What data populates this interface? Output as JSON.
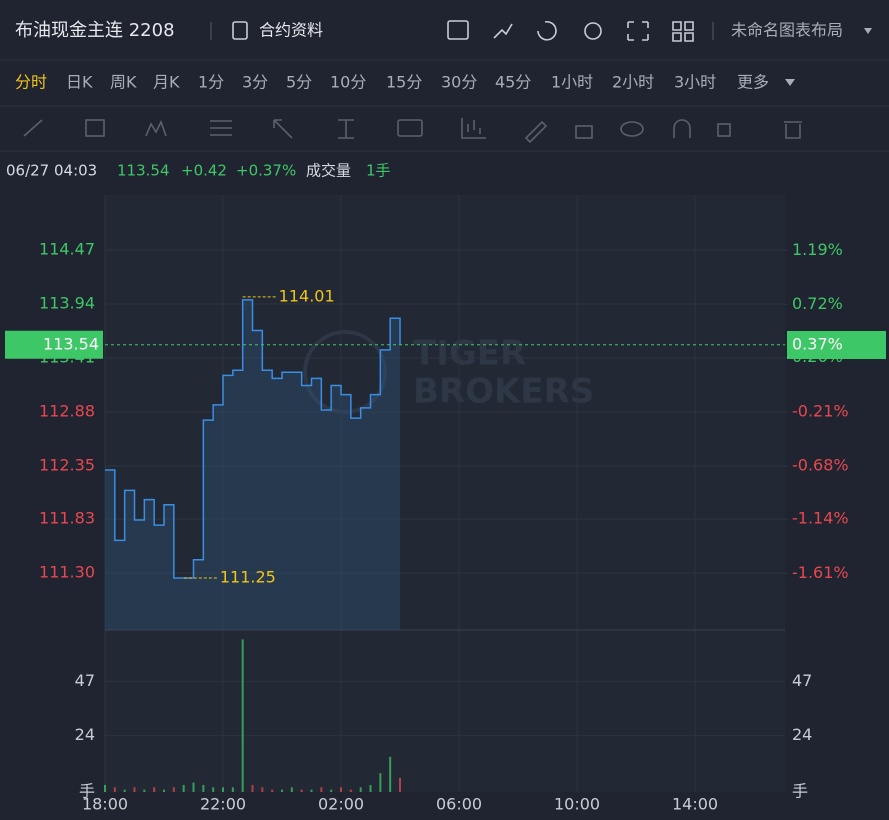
{
  "header": {
    "title": "布油现金主连 2208",
    "info_button": "合约资料",
    "layout_name": "未命名图表布局"
  },
  "periods": {
    "items": [
      "分时",
      "日K",
      "周K",
      "月K",
      "1分",
      "3分",
      "5分",
      "10分",
      "15分",
      "30分",
      "45分",
      "1小时",
      "2小时",
      "3小时"
    ],
    "more": "更多",
    "active_index": 0
  },
  "info": {
    "time": "06/27 04:03",
    "change": "+0.42",
    "change_pct": "+0.37%",
    "volume_label": "成交量",
    "volume": "1手"
  },
  "chart_data": {
    "type": "line",
    "watermark": [
      "TIGER",
      "BROKERS"
    ],
    "color": "#3a8ee6",
    "grid": true,
    "x": [
      "18:00",
      "18:20",
      "18:40",
      "19:00",
      "19:20",
      "19:40",
      "20:00",
      "20:20",
      "20:40",
      "21:00",
      "21:20",
      "21:40",
      "22:00",
      "22:20",
      "22:40",
      "23:00",
      "23:20",
      "23:40",
      "00:00",
      "00:20",
      "00:40",
      "01:00",
      "01:20",
      "01:40",
      "02:00",
      "02:20",
      "02:40",
      "03:00",
      "03:20",
      "03:40",
      "04:00"
    ],
    "values": [
      112.31,
      111.62,
      112.11,
      111.82,
      112.02,
      111.77,
      111.97,
      111.25,
      111.25,
      111.43,
      112.8,
      112.95,
      113.24,
      113.29,
      113.98,
      113.68,
      113.29,
      113.21,
      113.27,
      113.27,
      113.14,
      113.21,
      112.9,
      113.14,
      113.05,
      112.82,
      112.92,
      113.05,
      113.49,
      113.8,
      113.54
    ],
    "xlim": [
      "18:00",
      "17:03"
    ],
    "xticks": [
      "18:00",
      "22:00",
      "02:00",
      "06:00",
      "10:00",
      "14:00"
    ],
    "ylim": [
      110.74,
      115.01
    ],
    "yticks": [
      114.47,
      113.94,
      113.41,
      112.88,
      112.35,
      111.83,
      {
        "value": 111.3,
        "label": "111.30"
      }
    ],
    "y2lim": [
      -2.1,
      1.67
    ],
    "y2ticks": [
      {
        "value": 1.19,
        "label": "1.19%"
      },
      {
        "value": 0.72,
        "label": "0.72%"
      },
      {
        "value": 0.26,
        "label": "0.26%"
      },
      {
        "value": -0.21,
        "label": "-0.21%"
      },
      {
        "value": -0.68,
        "label": "-0.68%"
      },
      {
        "value": -1.14,
        "label": "-1.14%"
      },
      {
        "value": -1.61,
        "label": "-1.61%"
      }
    ],
    "high": 114.01,
    "low": 111.25,
    "last_price": 113.54,
    "last_pct": {
      "value": 0.37,
      "label": "0.37%"
    },
    "volume": {
      "values": [
        3,
        2,
        1,
        2,
        1,
        2,
        1,
        2,
        3,
        4,
        3,
        2,
        2,
        2,
        65,
        3,
        2,
        1,
        1,
        2,
        1,
        1,
        2,
        1,
        2,
        1,
        2,
        3,
        8,
        15,
        6
      ],
      "ylim": [
        0,
        69
      ],
      "yticks": [
        {
          "value": 0,
          "label": "手"
        },
        24,
        47
      ]
    }
  }
}
